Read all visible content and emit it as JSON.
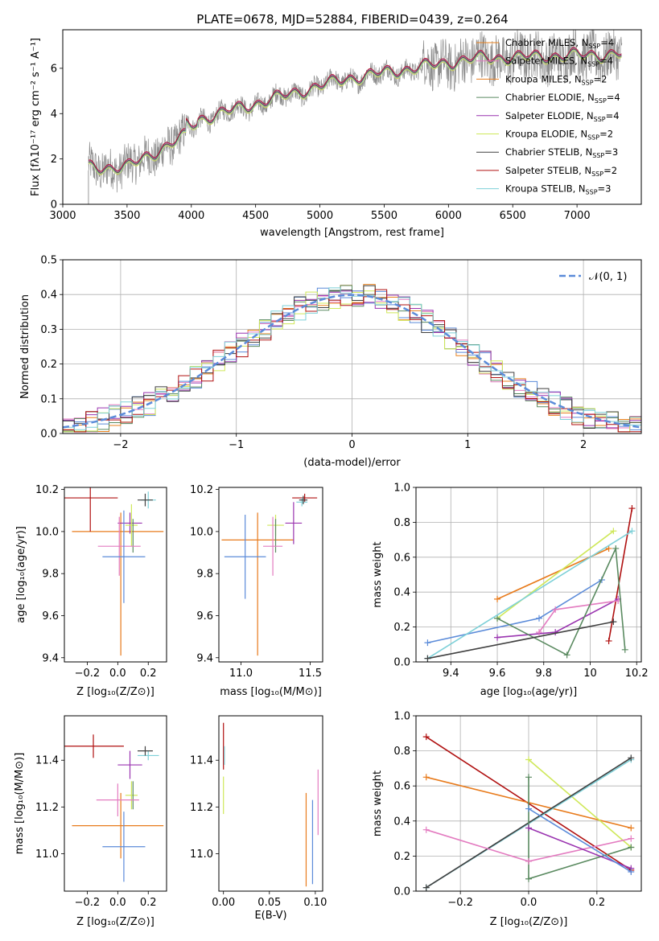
{
  "title": "PLATE=0678, MJD=52884, FIBERID=0439, z=0.264",
  "model_colors": [
    "#e8801c",
    "#e37bc0",
    "#e87b1c",
    "#5a8a60",
    "#9a34b0",
    "#cfe85a",
    "#404040",
    "#b01010",
    "#7ed0d8"
  ],
  "chart_data": [
    {
      "id": "spectrum",
      "type": "line",
      "xlabel": "wavelength [Angstrom, rest frame]",
      "ylabel": "Flux [fλ10⁻¹⁷ erg cm⁻² s⁻¹ A⁻¹]",
      "xlim": [
        3000,
        7500
      ],
      "ylim": [
        0,
        7.7
      ],
      "xticks": [
        3000,
        3500,
        4000,
        4500,
        5000,
        5500,
        6000,
        6500,
        7000
      ],
      "yticks": [
        0,
        2,
        4,
        6
      ],
      "legend_position": "top-right",
      "legend": [
        {
          "name": "Chabrier MILES, N_SSP=4",
          "text": "Chabrier MILES, N",
          "sub": "SSP",
          "tail": "=4",
          "color": "#e8801c"
        },
        {
          "name": "Salpeter MILES, N_SSP=4",
          "text": "Salpeter MILES, N",
          "sub": "SSP",
          "tail": "=4",
          "color": "#e37bc0"
        },
        {
          "name": "Kroupa MILES, N_SSP=2",
          "text": "Kroupa MILES, N",
          "sub": "SSP",
          "tail": "=2",
          "color": "#e87b1c"
        },
        {
          "name": "Chabrier ELODIE, N_SSP=4",
          "text": "Chabrier ELODIE, N",
          "sub": "SSP",
          "tail": "=4",
          "color": "#5a8a60"
        },
        {
          "name": "Salpeter ELODIE, N_SSP=4",
          "text": "Salpeter ELODIE, N",
          "sub": "SSP",
          "tail": "=4",
          "color": "#9a34b0"
        },
        {
          "name": "Kroupa ELODIE, N_SSP=2",
          "text": "Kroupa ELODIE, N",
          "sub": "SSP",
          "tail": "=2",
          "color": "#cfe85a"
        },
        {
          "name": "Chabrier STELIB, N_SSP=3",
          "text": "Chabrier STELIB, N",
          "sub": "SSP",
          "tail": "=3",
          "color": "#404040"
        },
        {
          "name": "Salpeter STELIB, N_SSP=2",
          "text": "Salpeter STELIB, N",
          "sub": "SSP",
          "tail": "=2",
          "color": "#b01010"
        },
        {
          "name": "Kroupa STELIB, N_SSP=3",
          "text": "Kroupa STELIB, N",
          "sub": "SSP",
          "tail": "=3",
          "color": "#7ed0d8"
        }
      ],
      "data_start": 3200,
      "data_end": 7350
    },
    {
      "id": "residuals",
      "type": "bar",
      "xlabel": "(data-model)/error",
      "ylabel": "Normed distribution",
      "xlim": [
        -2.5,
        2.5
      ],
      "ylim": [
        0,
        0.5
      ],
      "xticks": [
        -2,
        -1,
        0,
        1,
        2
      ],
      "yticks": [
        0.0,
        0.1,
        0.2,
        0.3,
        0.4,
        0.5
      ],
      "grid": true,
      "legend_position": "top-right",
      "legend": [
        {
          "name": "N(0,1)",
          "text": "𝒩(0, 1)",
          "color": "#5b8bd9"
        }
      ],
      "bin_width": 0.1
    },
    {
      "id": "age-vs-Z",
      "type": "scatter",
      "xlabel": "Z [log₁₀(Z/Z⊙)]",
      "ylabel": "age  [log₁₀(age/yr)]",
      "xlim": [
        -0.35,
        0.32
      ],
      "ylim": [
        9.38,
        10.21
      ],
      "xticks": [
        -0.2,
        0.0,
        0.2
      ],
      "xticklabels": [
        "−0.2",
        "0.0",
        "0.2"
      ],
      "yticks": [
        9.4,
        9.6,
        9.8,
        10.0,
        10.2
      ],
      "points": [
        {
          "x": 0.0,
          "y": 10.0,
          "xerr": 0.3,
          "yerr": 0.0,
          "color": "#e87b1c"
        },
        {
          "x": 0.02,
          "y": 9.75,
          "xerr": 0.0,
          "yerr": 0.34,
          "color": "#e87b1c"
        },
        {
          "x": -0.18,
          "y": 10.16,
          "xerr": 0.18,
          "yerr": 0.16,
          "color": "#b01010"
        },
        {
          "x": 0.2,
          "y": 10.15,
          "xerr": 0.05,
          "yerr": 0.04,
          "color": "#7ed0d8"
        },
        {
          "x": 0.18,
          "y": 10.15,
          "xerr": 0.05,
          "yerr": 0.03,
          "color": "#404040"
        },
        {
          "x": 0.08,
          "y": 10.04,
          "xerr": 0.08,
          "yerr": 0.05,
          "color": "#9a34b0"
        },
        {
          "x": 0.09,
          "y": 10.03,
          "xerr": 0.04,
          "yerr": 0.1,
          "color": "#cfe85a"
        },
        {
          "x": 0.1,
          "y": 9.98,
          "xerr": 0.0,
          "yerr": 0.08,
          "color": "#5a8a60"
        },
        {
          "x": 0.01,
          "y": 9.93,
          "xerr": 0.14,
          "yerr": 0.14,
          "color": "#e37bc0"
        },
        {
          "x": 0.04,
          "y": 9.88,
          "xerr": 0.14,
          "yerr": 0.22,
          "color": "#5b8bd9"
        }
      ]
    },
    {
      "id": "age-vs-mass",
      "type": "scatter",
      "xlabel": "mass [log₁₀(M/M⊙)]",
      "ylabel": "",
      "xlim": [
        10.84,
        11.59
      ],
      "ylim": [
        9.38,
        10.21
      ],
      "xticks": [
        11.0,
        11.5
      ],
      "xticklabels": [
        "11.0",
        "11.5"
      ],
      "yticks": [
        9.4,
        9.6,
        9.8,
        10.0,
        10.2
      ],
      "points": [
        {
          "x": 11.12,
          "y": 9.96,
          "xerr": 0.26,
          "yerr": 0.0,
          "color": "#e87b1c"
        },
        {
          "x": 11.12,
          "y": 9.75,
          "xerr": 0.0,
          "yerr": 0.34,
          "color": "#e87b1c"
        },
        {
          "x": 11.46,
          "y": 10.16,
          "xerr": 0.09,
          "yerr": 0.02,
          "color": "#b01010"
        },
        {
          "x": 11.44,
          "y": 10.14,
          "xerr": 0.04,
          "yerr": 0.02,
          "color": "#7ed0d8"
        },
        {
          "x": 11.45,
          "y": 10.15,
          "xerr": 0.03,
          "yerr": 0.02,
          "color": "#404040"
        },
        {
          "x": 11.38,
          "y": 10.04,
          "xerr": 0.06,
          "yerr": 0.1,
          "color": "#9a34b0"
        },
        {
          "x": 11.25,
          "y": 10.03,
          "xerr": 0.06,
          "yerr": 0.05,
          "color": "#cfe85a"
        },
        {
          "x": 11.25,
          "y": 9.98,
          "xerr": 0.0,
          "yerr": 0.08,
          "color": "#5a8a60"
        },
        {
          "x": 11.23,
          "y": 9.93,
          "xerr": 0.07,
          "yerr": 0.14,
          "color": "#e37bc0"
        },
        {
          "x": 11.03,
          "y": 9.88,
          "xerr": 0.15,
          "yerr": 0.2,
          "color": "#5b8bd9"
        }
      ]
    },
    {
      "id": "weight-vs-age",
      "type": "line",
      "xlabel": "age  [log₁₀(age/yr)]",
      "ylabel": "mass weight",
      "xlim": [
        9.25,
        10.22
      ],
      "ylim": [
        0,
        1.0
      ],
      "xticks": [
        9.4,
        9.6,
        9.8,
        10.0,
        10.2
      ],
      "yticks": [
        0.0,
        0.2,
        0.4,
        0.6,
        0.8,
        1.0
      ],
      "grid": true,
      "series": [
        {
          "color": "#e87b1c",
          "x": [
            9.6,
            10.08
          ],
          "y": [
            0.36,
            0.65
          ]
        },
        {
          "color": "#cfe85a",
          "x": [
            9.6,
            10.1
          ],
          "y": [
            0.25,
            0.75
          ]
        },
        {
          "color": "#b01010",
          "x": [
            10.08,
            10.18
          ],
          "y": [
            0.12,
            0.88
          ]
        },
        {
          "color": "#5b8bd9",
          "x": [
            9.3,
            9.78,
            10.05
          ],
          "y": [
            0.11,
            0.25,
            0.47
          ]
        },
        {
          "color": "#9a34b0",
          "x": [
            9.6,
            9.85,
            10.12
          ],
          "y": [
            0.14,
            0.17,
            0.36
          ]
        },
        {
          "color": "#e37bc0",
          "x": [
            9.78,
            9.85,
            10.12
          ],
          "y": [
            0.17,
            0.3,
            0.35
          ]
        },
        {
          "color": "#5a8a60",
          "x": [
            9.6,
            9.9,
            10.11,
            10.15
          ],
          "y": [
            0.25,
            0.04,
            0.65,
            0.07
          ]
        },
        {
          "color": "#7ed0d8",
          "x": [
            9.3,
            10.18
          ],
          "y": [
            0.02,
            0.75
          ]
        },
        {
          "color": "#404040",
          "x": [
            9.3,
            10.1
          ],
          "y": [
            0.02,
            0.23
          ]
        }
      ]
    },
    {
      "id": "mass-vs-Z",
      "type": "scatter",
      "xlabel": "Z [log₁₀(Z/Z⊙)]",
      "ylabel": "mass [log₁₀(M/M⊙)]",
      "xlim": [
        -0.35,
        0.32
      ],
      "ylim": [
        10.84,
        11.59
      ],
      "xticks": [
        -0.2,
        0.0,
        0.2
      ],
      "xticklabels": [
        "−0.2",
        "0.0",
        "0.2"
      ],
      "yticks": [
        11.0,
        11.2,
        11.4
      ],
      "points": [
        {
          "x": 0.0,
          "y": 11.12,
          "xerr": 0.3,
          "yerr": 0.0,
          "color": "#e87b1c"
        },
        {
          "x": 0.02,
          "y": 11.12,
          "xerr": 0.0,
          "yerr": 0.14,
          "color": "#e87b1c"
        },
        {
          "x": -0.16,
          "y": 11.46,
          "xerr": 0.2,
          "yerr": 0.05,
          "color": "#b01010"
        },
        {
          "x": 0.2,
          "y": 11.42,
          "xerr": 0.07,
          "yerr": 0.02,
          "color": "#7ed0d8"
        },
        {
          "x": 0.18,
          "y": 11.44,
          "xerr": 0.05,
          "yerr": 0.02,
          "color": "#404040"
        },
        {
          "x": 0.08,
          "y": 11.38,
          "xerr": 0.08,
          "yerr": 0.06,
          "color": "#9a34b0"
        },
        {
          "x": 0.09,
          "y": 11.25,
          "xerr": 0.04,
          "yerr": 0.06,
          "color": "#cfe85a"
        },
        {
          "x": 0.1,
          "y": 11.25,
          "xerr": 0.0,
          "yerr": 0.06,
          "color": "#5a8a60"
        },
        {
          "x": 0.0,
          "y": 11.23,
          "xerr": 0.14,
          "yerr": 0.07,
          "color": "#e37bc0"
        },
        {
          "x": 0.04,
          "y": 11.03,
          "xerr": 0.14,
          "yerr": 0.15,
          "color": "#5b8bd9"
        }
      ]
    },
    {
      "id": "mass-vs-EBV",
      "type": "scatter",
      "xlabel": "E(B-V)",
      "ylabel": "",
      "xlim": [
        -0.005,
        0.108
      ],
      "ylim": [
        10.84,
        11.59
      ],
      "xticks": [
        0.0,
        0.05,
        0.1
      ],
      "xticklabels": [
        "0.00",
        "0.05",
        "0.10"
      ],
      "yticks": [
        11.0,
        11.2,
        11.4
      ],
      "points": [
        {
          "x": 0.0,
          "y": 11.46,
          "xerr": 0.0,
          "yerr": 0.1,
          "color": "#b01010"
        },
        {
          "x": 0.001,
          "y": 11.42,
          "xerr": 0.0,
          "yerr": 0.04,
          "color": "#7ed0d8"
        },
        {
          "x": 0.0,
          "y": 11.25,
          "xerr": 0.0,
          "yerr": 0.08,
          "color": "#cfe85a"
        },
        {
          "x": 0.09,
          "y": 11.06,
          "xerr": 0.0,
          "yerr": 0.2,
          "color": "#e87b1c"
        },
        {
          "x": 0.097,
          "y": 11.05,
          "xerr": 0.0,
          "yerr": 0.18,
          "color": "#5b8bd9"
        },
        {
          "x": 0.103,
          "y": 11.22,
          "xerr": 0.0,
          "yerr": 0.14,
          "color": "#e37bc0"
        }
      ]
    },
    {
      "id": "weight-vs-Z",
      "type": "line",
      "xlabel": "Z [log₁₀(Z/Z⊙)]",
      "ylabel": "mass weight",
      "xlim": [
        -0.33,
        0.33
      ],
      "ylim": [
        0,
        1.0
      ],
      "xticks": [
        -0.2,
        0.0,
        0.2
      ],
      "xticklabels": [
        "−0.2",
        "0.0",
        "0.2"
      ],
      "yticks": [
        0.0,
        0.2,
        0.4,
        0.6,
        0.8,
        1.0
      ],
      "grid": true,
      "series": [
        {
          "color": "#b01010",
          "x": [
            -0.3,
            0.3
          ],
          "y": [
            0.88,
            0.12
          ]
        },
        {
          "color": "#e87b1c",
          "x": [
            -0.3,
            0.3
          ],
          "y": [
            0.65,
            0.36
          ]
        },
        {
          "color": "#cfe85a",
          "x": [
            0.0,
            0.3
          ],
          "y": [
            0.75,
            0.25
          ]
        },
        {
          "color": "#7ed0d8",
          "x": [
            -0.3,
            0.3
          ],
          "y": [
            0.02,
            0.75
          ]
        },
        {
          "color": "#404040",
          "x": [
            -0.3,
            0.3
          ],
          "y": [
            0.02,
            0.76
          ]
        },
        {
          "color": "#5a8a60",
          "x": [
            0.0,
            0.0,
            0.3
          ],
          "y": [
            0.65,
            0.07,
            0.25
          ]
        },
        {
          "color": "#e37bc0",
          "x": [
            -0.3,
            0.0,
            0.3
          ],
          "y": [
            0.35,
            0.17,
            0.3
          ]
        },
        {
          "color": "#9a34b0",
          "x": [
            0.0,
            0.3
          ],
          "y": [
            0.36,
            0.13
          ]
        },
        {
          "color": "#5b8bd9",
          "x": [
            0.0,
            0.3
          ],
          "y": [
            0.47,
            0.11
          ]
        }
      ]
    }
  ]
}
